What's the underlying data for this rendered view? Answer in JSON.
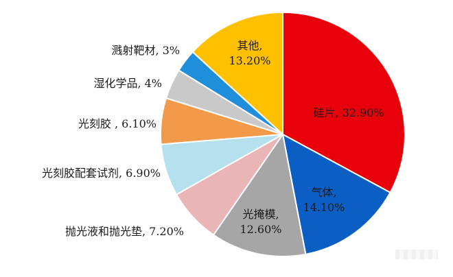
{
  "chart_data": {
    "type": "pie",
    "title": "",
    "slices": [
      {
        "label": "硅片",
        "value": 32.9,
        "text": "硅片, 32.90%",
        "color": "#e8000b"
      },
      {
        "label": "气体",
        "value": 14.1,
        "text": "气体,\n14.10%",
        "color": "#0b5fc4"
      },
      {
        "label": "光掩模",
        "value": 12.6,
        "text": "光掩模,\n12.60%",
        "color": "#a6a6a6"
      },
      {
        "label": "抛光液和抛光垫",
        "value": 7.2,
        "text": "抛光液和抛光垫, 7.20%",
        "color": "#eab5b7"
      },
      {
        "label": "光刻胶配套试剂",
        "value": 6.9,
        "text": "光刻胶配套试剂, 6.90%",
        "color": "#b5e0ee"
      },
      {
        "label": "光刻胶",
        "value": 6.1,
        "text": "光刻胶 , 6.10%",
        "color": "#f39a4a"
      },
      {
        "label": "湿化学品",
        "value": 4.0,
        "text": "湿化学品, 4%",
        "color": "#c9c9c9"
      },
      {
        "label": "溅射靶材",
        "value": 3.0,
        "text": "溅射靶材, 3%",
        "color": "#1f8fdb"
      },
      {
        "label": "其他",
        "value": 13.2,
        "text": "其他,\n13.20%",
        "color": "#ffc000"
      }
    ]
  }
}
